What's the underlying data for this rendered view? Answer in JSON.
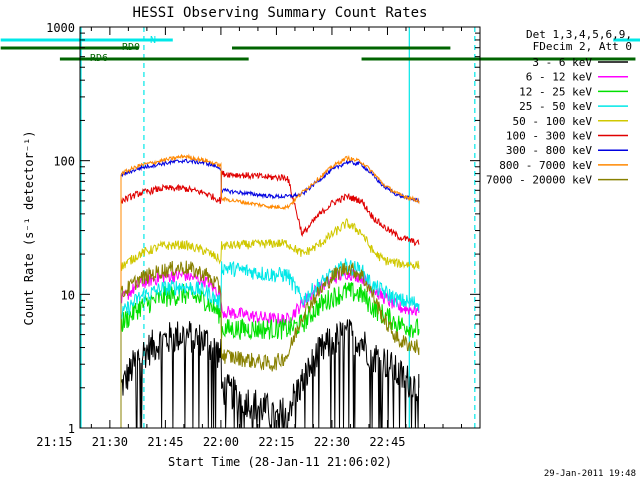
{
  "footer": {
    "timestamp": "29-Jan-2011 19:48"
  },
  "chart_data": {
    "type": "line",
    "title": "HESSI Observing Summary Count Rates",
    "xlabel": "Start Time (28-Jan-11 21:06:02)",
    "ylabel": "Count Rate (s⁻¹ detector⁻¹)",
    "y_scale": "log",
    "ylim": [
      1,
      1000
    ],
    "xlim_minutes": [
      21.93,
      130.0
    ],
    "x_ticks": [
      {
        "label": "21:15",
        "minutes": 15
      },
      {
        "label": "21:30",
        "minutes": 30
      },
      {
        "label": "21:45",
        "minutes": 45
      },
      {
        "label": "22:00",
        "minutes": 60
      },
      {
        "label": "22:15",
        "minutes": 75
      },
      {
        "label": "22:30",
        "minutes": 90
      },
      {
        "label": "22:45",
        "minutes": 105
      }
    ],
    "y_ticks": [
      {
        "label": "1",
        "value": 1
      },
      {
        "label": "10",
        "value": 10
      },
      {
        "label": "100",
        "value": 100
      },
      {
        "label": "1000",
        "value": 1000
      }
    ],
    "legend": {
      "position": "right",
      "header": [
        "Det 1,3,4,5,6,9,",
        "FDecim 2, Att 0"
      ],
      "entries": [
        {
          "label": "3 - 6 keV",
          "color": "#000000"
        },
        {
          "label": "6 - 12 keV",
          "color": "#ff00ff"
        },
        {
          "label": "12 - 25 keV",
          "color": "#00e000"
        },
        {
          "label": "25 - 50 keV",
          "color": "#00e8e8"
        },
        {
          "label": "50 - 100 keV",
          "color": "#d0c800"
        },
        {
          "label": "100 - 300 keV",
          "color": "#e00000"
        },
        {
          "label": "300 - 800 keV",
          "color": "#0000e0"
        },
        {
          "label": "800 - 7000 keV",
          "color": "#ff8800"
        },
        {
          "label": "7000 - 20000 keV",
          "color": "#888000"
        }
      ]
    },
    "flag_bars": [
      {
        "label": "N",
        "color": "#00e8e8",
        "segments": [
          [
            0.5,
            47
          ],
          [
            166,
            195
          ]
        ]
      },
      {
        "label": "RD0",
        "color": "#006400",
        "segments": [
          [
            0.5,
            37.8
          ],
          [
            63,
            122
          ],
          [
            178,
            194.5
          ]
        ]
      },
      {
        "label": "RD6",
        "color": "#006400",
        "segments": [
          [
            16.5,
            67.5
          ],
          [
            98,
            172
          ]
        ]
      }
    ],
    "vlines": [
      {
        "minutes": 22.2,
        "style": "solid",
        "color": "#00e8e8"
      },
      {
        "minutes": 39.2,
        "style": "dashed",
        "color": "#00e8e8"
      },
      {
        "minutes": 110.9,
        "style": "solid",
        "color": "#00e8e8"
      },
      {
        "minutes": 128.6,
        "style": "dashed",
        "color": "#00e8e8"
      }
    ],
    "data_interval_minutes": [
      33.0,
      113.5
    ],
    "profile_x_minutes": [
      33.0,
      38.0,
      44.0,
      50.0,
      56.0,
      60.0,
      60.1,
      74.0,
      74.1,
      78.0,
      82.0,
      86.0,
      90.0,
      94.0,
      98.0,
      101.0,
      104.0,
      108.0,
      113.5
    ],
    "series": [
      {
        "name": "3 - 6 keV",
        "color": "#000000",
        "noise": 0.13,
        "values": [
          2.0,
          3.5,
          4.5,
          5.0,
          4.5,
          3.5,
          2.0,
          1.3,
          1.1,
          1.4,
          2.2,
          3.5,
          4.5,
          5.0,
          4.5,
          3.5,
          3.2,
          2.5,
          2.0
        ]
      },
      {
        "name": "6 - 12 keV",
        "color": "#ff00ff",
        "noise": 0.05,
        "values": [
          9.0,
          12.0,
          13.5,
          14.0,
          12.5,
          10.0,
          7.5,
          6.5,
          6.5,
          6.5,
          8.5,
          11.0,
          13.0,
          14.5,
          13.5,
          11.0,
          9.5,
          8.0,
          7.5
        ]
      },
      {
        "name": "12 - 25 keV",
        "color": "#00e000",
        "noise": 0.08,
        "values": [
          6.0,
          8.0,
          9.5,
          10.0,
          9.0,
          7.0,
          5.5,
          5.5,
          5.5,
          5.5,
          6.0,
          8.0,
          9.5,
          10.5,
          10.0,
          8.0,
          7.0,
          6.0,
          5.5
        ]
      },
      {
        "name": "25 - 50 keV",
        "color": "#00e8e8",
        "noise": 0.06,
        "values": [
          7.0,
          9.5,
          11.0,
          11.5,
          10.5,
          8.5,
          16.0,
          14.0,
          14.0,
          14.0,
          9.0,
          11.5,
          14.0,
          16.5,
          15.0,
          11.5,
          10.5,
          9.0,
          8.5
        ]
      },
      {
        "name": "50 - 100 keV",
        "color": "#d0c800",
        "noise": 0.035,
        "values": [
          16.0,
          20.0,
          23.0,
          23.5,
          21.0,
          18.0,
          23.0,
          24.0,
          24.0,
          24.0,
          20.0,
          23.0,
          28.0,
          34.0,
          29.0,
          21.0,
          18.0,
          17.0,
          16.5
        ]
      },
      {
        "name": "100 - 300 keV",
        "color": "#e00000",
        "noise": 0.025,
        "values": [
          50.0,
          57.0,
          62.0,
          62.0,
          57.0,
          50.0,
          80.0,
          75.0,
          75.0,
          75.0,
          28.0,
          38.0,
          48.0,
          54.0,
          50.0,
          38.0,
          32.0,
          27.0,
          24.0
        ]
      },
      {
        "name": "300 - 800 keV",
        "color": "#0000e0",
        "noise": 0.015,
        "values": [
          78.0,
          88.0,
          95.0,
          100.0,
          96.0,
          88.0,
          60.0,
          54.0,
          54.0,
          54.0,
          56.0,
          70.0,
          85.0,
          98.0,
          94.0,
          78.0,
          64.0,
          55.0,
          50.0
        ]
      },
      {
        "name": "800 - 7000 keV",
        "color": "#ff8800",
        "noise": 0.015,
        "values": [
          80.0,
          92.0,
          100.0,
          108.0,
          100.0,
          92.0,
          52.0,
          45.0,
          45.0,
          45.0,
          58.0,
          72.0,
          90.0,
          105.0,
          98.0,
          82.0,
          66.0,
          56.0,
          50.0
        ]
      },
      {
        "name": "7000 - 20000 keV",
        "color": "#888000",
        "noise": 0.06,
        "values": [
          10.0,
          13.0,
          15.0,
          16.0,
          14.0,
          11.0,
          3.5,
          3.0,
          3.0,
          3.5,
          7.0,
          10.0,
          13.5,
          16.0,
          14.0,
          10.0,
          6.5,
          4.5,
          4.0
        ]
      }
    ]
  }
}
